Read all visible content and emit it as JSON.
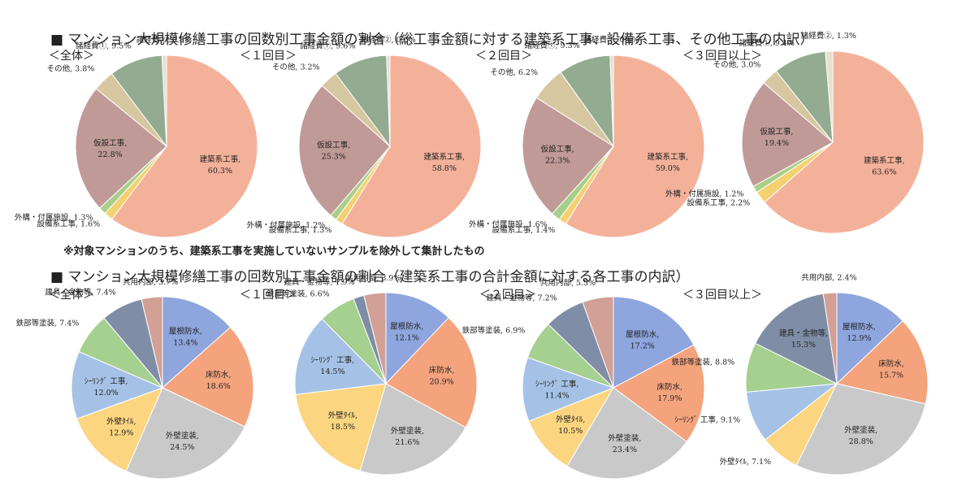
{
  "section1_title": "■ マンション大規模修繕工事の回数別工事金額の割合（総工事金額に対する建築系工事、設備系工事、その他工事の内訳）",
  "section2_title": "■ マンション大規模修繕工事の回数別工事金額の割合（建築系工事の合計金額に対する各工事の内訳）",
  "note": "※対象マンションのうち、建築系工事を実施していないサンプルを除外して集計したもの",
  "chart_data": [
    {
      "type": "pie",
      "group": "top",
      "title": "＜全体＞",
      "slices": [
        {
          "label": "建築系工事,",
          "value": 60.3,
          "value_text": "60.3%",
          "color": "#f4b19a"
        },
        {
          "label": "設備系工事,",
          "value": 1.6,
          "value_text": "1.6%",
          "color": "#f5d070"
        },
        {
          "label": "外構・付属施設,",
          "value": 1.3,
          "value_text": "1.3%",
          "color": "#a8cf8a"
        },
        {
          "label": "仮設工事,",
          "value": 22.8,
          "value_text": "22.8%",
          "color": "#c09a97"
        },
        {
          "label": "その他,",
          "value": 3.8,
          "value_text": "3.8%",
          "color": "#d7c7a0"
        },
        {
          "label": "諸経費①,",
          "value": 9.5,
          "value_text": "9.5%",
          "color": "#93ab90"
        },
        {
          "label": "諸経費②,",
          "value": 0.8,
          "value_text": "0.8%",
          "color": "#e6e0cf"
        }
      ]
    },
    {
      "type": "pie",
      "group": "top",
      "title": "＜１回目＞",
      "slices": [
        {
          "label": "建築系工事,",
          "value": 58.8,
          "value_text": "58.8%",
          "color": "#f4b19a"
        },
        {
          "label": "設備系工事,",
          "value": 1.3,
          "value_text": "1.3%",
          "color": "#f5d070"
        },
        {
          "label": "外構・付属施設,",
          "value": 1.2,
          "value_text": "1.2%",
          "color": "#a8cf8a"
        },
        {
          "label": "仮設工事,",
          "value": 25.3,
          "value_text": "25.3%",
          "color": "#c09a97"
        },
        {
          "label": "その他,",
          "value": 3.2,
          "value_text": "3.2%",
          "color": "#d7c7a0"
        },
        {
          "label": "諸経費①,",
          "value": 9.6,
          "value_text": "9.6%",
          "color": "#93ab90"
        },
        {
          "label": "諸経費②,",
          "value": 0.6,
          "value_text": "0.6%",
          "color": "#e6e0cf"
        }
      ]
    },
    {
      "type": "pie",
      "group": "top",
      "title": "＜２回目＞",
      "slices": [
        {
          "label": "建築系工事,",
          "value": 59.0,
          "value_text": "59.0%",
          "color": "#f4b19a"
        },
        {
          "label": "設備系工事,",
          "value": 1.4,
          "value_text": "1.4%",
          "color": "#f5d070"
        },
        {
          "label": "外構・付属施設,",
          "value": 1.6,
          "value_text": "1.6%",
          "color": "#a8cf8a"
        },
        {
          "label": "仮設工事,",
          "value": 22.3,
          "value_text": "22.3%",
          "color": "#c09a97"
        },
        {
          "label": "その他,",
          "value": 6.2,
          "value_text": "6.2%",
          "color": "#d7c7a0"
        },
        {
          "label": "諸経費①,",
          "value": 9.3,
          "value_text": "9.3%",
          "color": "#93ab90"
        },
        {
          "label": "諸経費②,",
          "value": 0.6,
          "value_text": "0.6%",
          "color": "#e6e0cf"
        }
      ]
    },
    {
      "type": "pie",
      "group": "top",
      "title": "＜３回目以上＞",
      "slices": [
        {
          "label": "建築系工事,",
          "value": 63.6,
          "value_text": "63.6%",
          "color": "#f4b19a"
        },
        {
          "label": "設備系工事,",
          "value": 2.2,
          "value_text": "2.2%",
          "color": "#f5d070"
        },
        {
          "label": "外構・付属施設,",
          "value": 1.2,
          "value_text": "1.2%",
          "color": "#a8cf8a"
        },
        {
          "label": "仮設工事,",
          "value": 19.4,
          "value_text": "19.4%",
          "color": "#c09a97"
        },
        {
          "label": "その他,",
          "value": 3.0,
          "value_text": "3.0%",
          "color": "#d7c7a0"
        },
        {
          "label": "諸経費①,",
          "value": 9.4,
          "value_text": "9.4%",
          "color": "#93ab90"
        },
        {
          "label": "諸経費②,",
          "value": 1.3,
          "value_text": "1.3%",
          "color": "#e6e0cf"
        }
      ]
    },
    {
      "type": "pie",
      "group": "bottom",
      "title": "＜全体＞",
      "slices": [
        {
          "label": "屋根防水,",
          "value": 13.4,
          "value_text": "13.4%",
          "color": "#8ea5de"
        },
        {
          "label": "床防水,",
          "value": 18.6,
          "value_text": "18.6%",
          "color": "#f4a37d"
        },
        {
          "label": "外壁塗装,",
          "value": 24.5,
          "value_text": "24.5%",
          "color": "#c9c9c9"
        },
        {
          "label": "外壁ﾀｲﾙ,",
          "value": 12.9,
          "value_text": "12.9%",
          "color": "#fcd580"
        },
        {
          "label": "ｼｰﾘﾝｸﾞ 工事,",
          "value": 12.0,
          "value_text": "12.0%",
          "color": "#a5c2e6"
        },
        {
          "label": "鉄部等塗装,",
          "value": 7.4,
          "value_text": "7.4%",
          "color": "#a5d090"
        },
        {
          "label": "建具・金物等,",
          "value": 7.4,
          "value_text": "7.4%",
          "color": "#7f8ea6"
        },
        {
          "label": "共用内部,",
          "value": 3.7,
          "value_text": "3.7%",
          "color": "#d2a094"
        }
      ]
    },
    {
      "type": "pie",
      "group": "bottom",
      "title": "＜１回目＞",
      "slices": [
        {
          "label": "屋根防水,",
          "value": 12.1,
          "value_text": "12.1%",
          "color": "#8ea5de"
        },
        {
          "label": "床防水,",
          "value": 20.9,
          "value_text": "20.9%",
          "color": "#f4a37d"
        },
        {
          "label": "外壁塗装,",
          "value": 21.6,
          "value_text": "21.6%",
          "color": "#c9c9c9"
        },
        {
          "label": "外壁ﾀｲﾙ,",
          "value": 18.5,
          "value_text": "18.5%",
          "color": "#fcd580"
        },
        {
          "label": "ｼｰﾘﾝｸﾞ 工事,",
          "value": 14.5,
          "value_text": "14.5%",
          "color": "#a5c2e6"
        },
        {
          "label": "鉄部等塗装,",
          "value": 6.6,
          "value_text": "6.6%",
          "color": "#a5d090"
        },
        {
          "label": "建具・金物等,",
          "value": 1.9,
          "value_text": "1.9%",
          "color": "#7f8ea6"
        },
        {
          "label": "共用内部,",
          "value": 3.9,
          "value_text": "3.9%",
          "color": "#d2a094"
        }
      ]
    },
    {
      "type": "pie",
      "group": "bottom",
      "title": "＜２回目＞",
      "slices": [
        {
          "label": "屋根防水,",
          "value": 17.2,
          "value_text": "17.2%",
          "color": "#8ea5de"
        },
        {
          "label": "床防水,",
          "value": 17.9,
          "value_text": "17.9%",
          "color": "#f4a37d"
        },
        {
          "label": "外壁塗装,",
          "value": 23.4,
          "value_text": "23.4%",
          "color": "#c9c9c9"
        },
        {
          "label": "外壁ﾀｲﾙ,",
          "value": 10.5,
          "value_text": "10.5%",
          "color": "#fcd580"
        },
        {
          "label": "ｼｰﾘﾝｸﾞ 工事,",
          "value": 11.4,
          "value_text": "11.4%",
          "color": "#a5c2e6"
        },
        {
          "label": "鉄部等塗装,",
          "value": 6.9,
          "value_text": "6.9%",
          "color": "#a5d090"
        },
        {
          "label": "建具・金物等,",
          "value": 7.2,
          "value_text": "7.2%",
          "color": "#7f8ea6"
        },
        {
          "label": "共用内部,",
          "value": 5.5,
          "value_text": "5.5%",
          "color": "#d2a094"
        }
      ]
    },
    {
      "type": "pie",
      "group": "bottom",
      "title": "＜３回目以上＞",
      "slices": [
        {
          "label": "屋根防水,",
          "value": 12.9,
          "value_text": "12.9%",
          "color": "#8ea5de"
        },
        {
          "label": "床防水,",
          "value": 15.7,
          "value_text": "15.7%",
          "color": "#f4a37d"
        },
        {
          "label": "外壁塗装,",
          "value": 28.8,
          "value_text": "28.8%",
          "color": "#c9c9c9"
        },
        {
          "label": "外壁ﾀｲﾙ,",
          "value": 7.1,
          "value_text": "7.1%",
          "color": "#fcd580"
        },
        {
          "label": "ｼｰﾘﾝｸﾞ 工事,",
          "value": 9.1,
          "value_text": "9.1%",
          "color": "#a5c2e6"
        },
        {
          "label": "鉄部等塗装,",
          "value": 8.8,
          "value_text": "8.8%",
          "color": "#a5d090"
        },
        {
          "label": "建具・金物等,",
          "value": 15.3,
          "value_text": "15.3%",
          "color": "#7f8ea6"
        },
        {
          "label": "共用内部,",
          "value": 2.4,
          "value_text": "2.4%",
          "color": "#d2a094"
        }
      ]
    }
  ]
}
